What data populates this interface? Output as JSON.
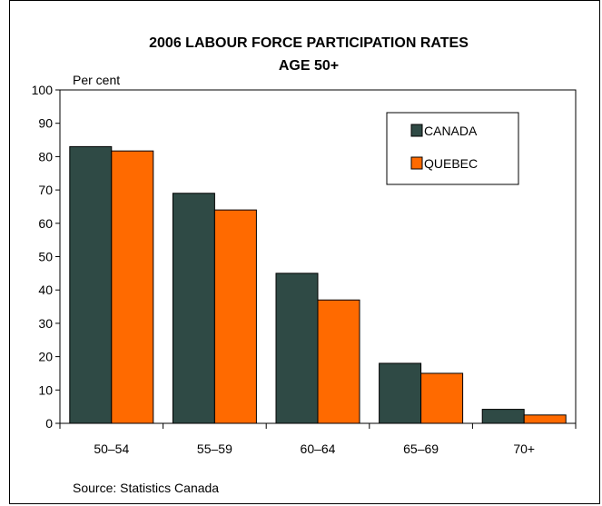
{
  "chart_data": {
    "type": "bar",
    "title": "2006 LABOUR FORCE PARTICIPATION RATES",
    "subtitle": "AGE 50+",
    "ylabel": "Per cent",
    "xlabel": "",
    "categories": [
      "50–54",
      "55–59",
      "60–64",
      "65–69",
      "70+"
    ],
    "series": [
      {
        "name": "CANADA",
        "color": "#2f4a45",
        "values": [
          83,
          69,
          45,
          18,
          4.2
        ]
      },
      {
        "name": "QUEBEC",
        "color": "#ff6a00",
        "values": [
          81.7,
          64,
          37,
          15,
          2.5
        ]
      }
    ],
    "ylim": [
      0,
      100
    ],
    "yticks": [
      0,
      10,
      20,
      30,
      40,
      50,
      60,
      70,
      80,
      90,
      100
    ],
    "grid": false,
    "legend_position": "top-right",
    "source": "Source: Statistics Canada"
  }
}
